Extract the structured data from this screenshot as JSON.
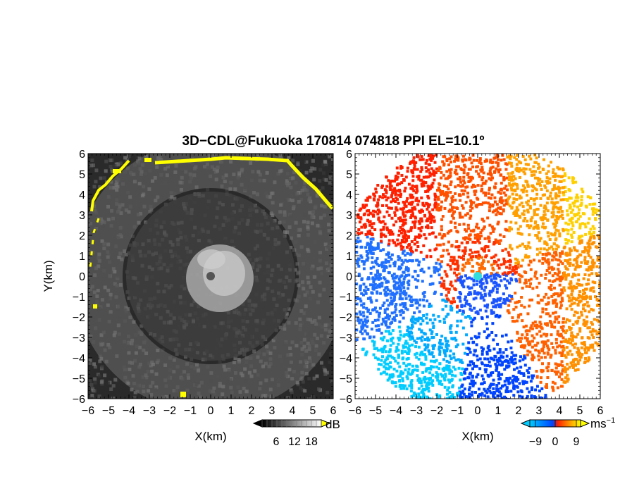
{
  "title": "3D−CDL@Fukuoka 170814 074818 PPI EL=10.1º",
  "chart_data": [
    {
      "type": "heatmap",
      "panel": "left",
      "quantity_unit": "dB",
      "xlabel": "X(km)",
      "ylabel": "Y(km)",
      "xlim": [
        -6,
        6
      ],
      "ylim": [
        -6,
        6
      ],
      "xticks": [
        "−6",
        "−5",
        "−4",
        "−3",
        "−2",
        "−1",
        "0",
        "1",
        "2",
        "3",
        "4",
        "5",
        "6"
      ],
      "yticks": [
        "6",
        "5",
        "4",
        "3",
        "2",
        "1",
        "0",
        "−1",
        "−2",
        "−3",
        "−4",
        "−5",
        "−6"
      ],
      "colorbar": {
        "ticks": [
          "6",
          "12",
          "18"
        ],
        "unit": "dB",
        "colors": [
          "#000000",
          "#ffffff"
        ],
        "over_color": "#ffff00"
      },
      "colormap": "gray",
      "center_marker": {
        "x": 0,
        "y": 0,
        "color": "#555555"
      }
    },
    {
      "type": "heatmap",
      "panel": "right",
      "quantity_unit": "ms⁻¹",
      "xlabel": "X(km)",
      "ylabel": "",
      "xlim": [
        -6,
        6
      ],
      "ylim": [
        -6,
        6
      ],
      "xticks": [
        "−6",
        "−5",
        "−4",
        "−3",
        "−2",
        "−1",
        "0",
        "1",
        "2",
        "3",
        "4",
        "5",
        "6"
      ],
      "yticks": [
        "6",
        "5",
        "4",
        "3",
        "2",
        "1",
        "0",
        "−1",
        "−2",
        "−3",
        "−4",
        "−5",
        "−6"
      ],
      "colorbar": {
        "ticks": [
          "−9",
          "0",
          "9"
        ],
        "unit": "ms",
        "unit_exponent": "−1",
        "colors": [
          "#00ccff",
          "#0044ff",
          "#ff2000",
          "#ffa000",
          "#ffff00"
        ]
      },
      "colormap": "cyan-blue-red-yellow",
      "center_marker": {
        "x": 0,
        "y": 0,
        "color": "#33dddd"
      }
    }
  ]
}
